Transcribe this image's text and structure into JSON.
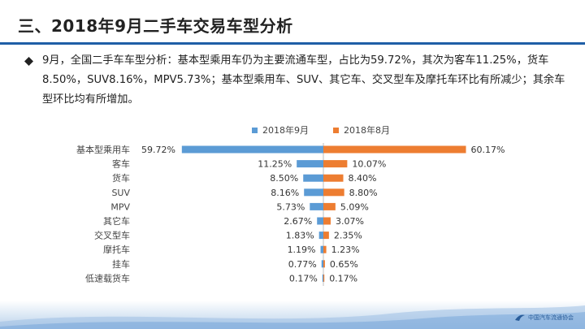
{
  "title": "三、2018年9月二手车交易车型分析",
  "paragraph": "9月，全国二手车车型分析：基本型乘用车仍为主要流通车型，占比为59.72%，其次为客车11.25%，货车8.50%，SUV8.16%，MPV5.73%；基本型乘用车、SUV、其它车、交叉型车及摩托车环比有所减少；其余车型环比均有所增加。",
  "footer": {
    "logo_text": "中国汽车流通协会"
  },
  "colors": {
    "sep": "#5b9bd5",
    "aug": "#ed7d31",
    "rule": "#1f5fa6"
  },
  "chart_data": {
    "type": "bar",
    "orientation": "horizontal-butterfly",
    "categories": [
      "基本型乘用车",
      "客车",
      "货车",
      "SUV",
      "MPV",
      "其它车",
      "交叉型车",
      "摩托车",
      "挂车",
      "低速载货车"
    ],
    "series": [
      {
        "name": "2018年9月",
        "values": [
          59.72,
          11.25,
          8.5,
          8.16,
          5.73,
          2.67,
          1.83,
          1.19,
          0.77,
          0.17
        ],
        "labels": [
          "59.72%",
          "11.25%",
          "8.50%",
          "8.16%",
          "5.73%",
          "2.67%",
          "1.83%",
          "1.19%",
          "0.77%",
          "0.17%"
        ]
      },
      {
        "name": "2018年8月",
        "values": [
          60.17,
          10.07,
          8.4,
          8.8,
          5.09,
          3.07,
          2.35,
          1.23,
          0.65,
          0.17
        ],
        "labels": [
          "60.17%",
          "10.07%",
          "8.40%",
          "8.80%",
          "5.09%",
          "3.07%",
          "2.35%",
          "1.23%",
          "0.65%",
          "0.17%"
        ]
      }
    ],
    "unit": "%",
    "legend_position": "top"
  }
}
